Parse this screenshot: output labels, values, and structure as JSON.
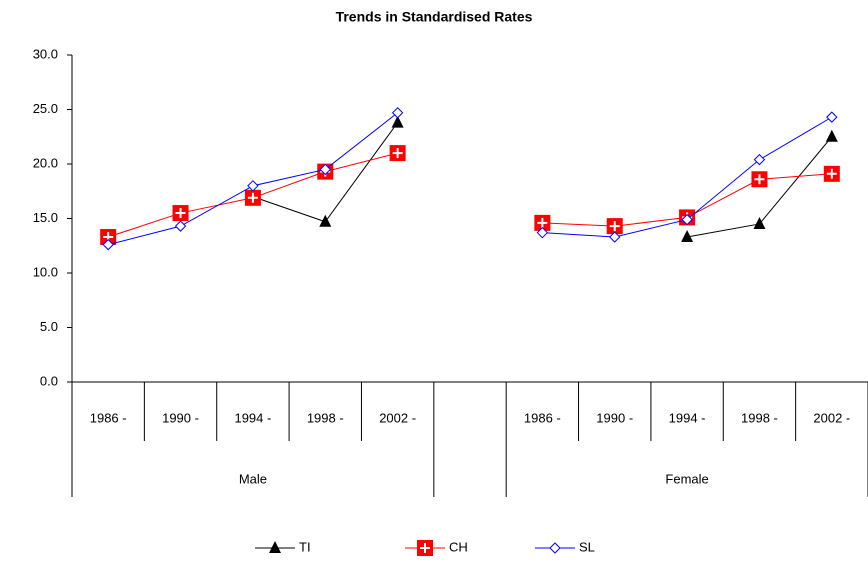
{
  "chart_data": {
    "type": "line",
    "title": "Trends in Standardised Rates",
    "categories": [
      "1986 -",
      "1990 -",
      "1994 -",
      "1998 -",
      "2002 -",
      null,
      "1986 -",
      "1990 -",
      "1994 -",
      "1998 -",
      "2002 -"
    ],
    "group_labels": [
      "Male",
      "Female"
    ],
    "series": [
      {
        "name": "TI",
        "color": "#000000",
        "marker": "triangle",
        "values": [
          null,
          null,
          17.0,
          14.7,
          23.8,
          null,
          null,
          null,
          13.3,
          14.5,
          22.5
        ]
      },
      {
        "name": "CH",
        "color": "#ff0000",
        "marker": "square-plus",
        "values": [
          13.3,
          15.5,
          16.9,
          19.3,
          21.0,
          null,
          14.6,
          14.3,
          15.1,
          18.6,
          19.1
        ]
      },
      {
        "name": "SL",
        "color": "#0000ff",
        "marker": "diamond",
        "values": [
          12.6,
          14.3,
          18.0,
          19.5,
          24.7,
          null,
          13.7,
          13.3,
          14.9,
          20.4,
          24.3
        ]
      }
    ],
    "ylim": [
      0,
      30
    ],
    "yticks": [
      {
        "value": 0,
        "label": "0.0"
      },
      {
        "value": 5,
        "label": "5.0"
      },
      {
        "value": 10,
        "label": "10.0"
      },
      {
        "value": 15,
        "label": "15.0"
      },
      {
        "value": 20,
        "label": "20.0"
      },
      {
        "value": 25,
        "label": "25.0"
      },
      {
        "value": 30,
        "label": "30.0"
      }
    ],
    "legend": "bottom"
  }
}
